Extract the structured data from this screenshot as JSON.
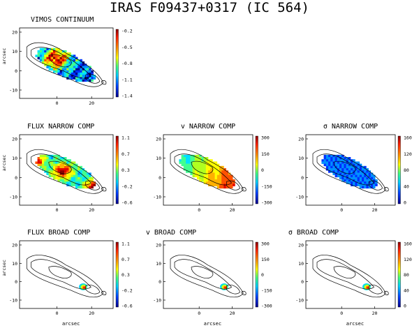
{
  "figure": {
    "title": "IRAS F09437+0317 (IC 564)",
    "xlabel": "arcsec",
    "ylabel": "arcsec"
  },
  "panels": [
    {
      "title": "VIMOS CONTINUUM",
      "cbar": [
        "-0.2",
        "-0.5",
        "-0.8",
        "-1.1",
        "-1.4"
      ],
      "cmap": "continuum",
      "xticks": [
        "0",
        "20"
      ],
      "yticks": [
        "20",
        "10",
        "0",
        "-10"
      ],
      "show_xlabel": false,
      "show_ylabel": true
    },
    {
      "title": "FLUX NARROW COMP",
      "cbar": [
        "1.1",
        "0.7",
        "0.3",
        "-0.2",
        "-0.6"
      ],
      "cmap": "flux",
      "xticks": [
        "0",
        "20"
      ],
      "yticks": [
        "20",
        "10",
        "0",
        "-10"
      ],
      "show_xlabel": false,
      "show_ylabel": true
    },
    {
      "title": "v NARROW COMP",
      "cbar": [
        "300",
        "150",
        "0",
        "-150",
        "-300"
      ],
      "cmap": "velocity",
      "xticks": [
        "0",
        "20"
      ],
      "yticks": [
        "20",
        "10",
        "0",
        "-10"
      ],
      "show_xlabel": false,
      "show_ylabel": false
    },
    {
      "title": "σ NARROW COMP",
      "cbar": [
        "160",
        "120",
        "80",
        "40",
        "0"
      ],
      "cmap": "sigma",
      "xticks": [
        "0",
        "20"
      ],
      "yticks": [
        "20",
        "10",
        "0",
        "-10"
      ],
      "show_xlabel": false,
      "show_ylabel": false
    },
    {
      "title": "FLUX BROAD COMP",
      "cbar": [
        "1.1",
        "0.7",
        "0.3",
        "-0.2",
        "-0.6"
      ],
      "cmap": "blob",
      "xticks": [
        "0",
        "20"
      ],
      "yticks": [
        "20",
        "10",
        "0",
        "-10"
      ],
      "show_xlabel": true,
      "show_ylabel": true
    },
    {
      "title": "v BROAD COMP",
      "cbar": [
        "300",
        "150",
        "0",
        "-150",
        "-300"
      ],
      "cmap": "blob",
      "xticks": [
        "0",
        "20"
      ],
      "yticks": [
        "20",
        "10",
        "0",
        "-10"
      ],
      "show_xlabel": true,
      "show_ylabel": false
    },
    {
      "title": "σ BROAD COMP",
      "cbar": [
        "160",
        "120",
        "80",
        "40",
        "0"
      ],
      "cmap": "blob",
      "xticks": [
        "0",
        "20"
      ],
      "yticks": [
        "20",
        "10",
        "0",
        "-10"
      ],
      "show_xlabel": true,
      "show_ylabel": false
    }
  ],
  "colors": {
    "colorbar": [
      "#8b0000",
      "#ff2000",
      "#ff9000",
      "#ffff00",
      "#40ff80",
      "#00d0ff",
      "#0040ff",
      "#00008b"
    ]
  }
}
